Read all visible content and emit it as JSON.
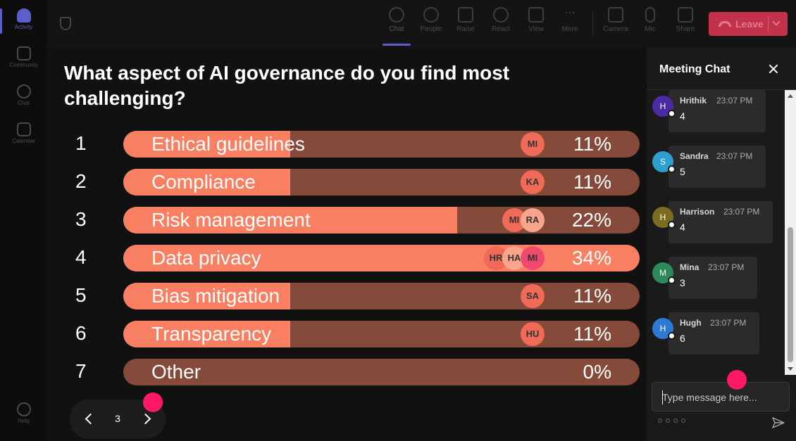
{
  "rail": {
    "items": [
      {
        "label": "Activity",
        "active": true
      },
      {
        "label": "Community"
      },
      {
        "label": "Chat"
      },
      {
        "label": "Calendar"
      },
      {
        "label": "Help"
      }
    ]
  },
  "toolbar": {
    "items": [
      {
        "label": "Chat",
        "icon": "chat-icon",
        "active": true
      },
      {
        "label": "People",
        "icon": "people-icon"
      },
      {
        "label": "Raise",
        "icon": "hand-icon"
      },
      {
        "label": "React",
        "icon": "smile-icon"
      },
      {
        "label": "View",
        "icon": "grid-icon"
      },
      {
        "label": "More",
        "icon": "more-icon"
      },
      {
        "label": "Camera",
        "icon": "camera-icon"
      },
      {
        "label": "Mic",
        "icon": "mic-icon"
      },
      {
        "label": "Share",
        "icon": "share-icon"
      }
    ],
    "leave_label": "Leave",
    "leave_color": "#c4314b"
  },
  "poll": {
    "question": "What aspect of AI governance do you find most challenging?",
    "bar_color": "#f87f62",
    "bar_track_color": "#864a3a",
    "options": [
      {
        "num": "1",
        "label": "Ethical guidelines",
        "pct_value": 11,
        "pct": "11%",
        "avatars": [
          {
            "initials": "MI",
            "color": "#ef6b57"
          }
        ]
      },
      {
        "num": "2",
        "label": "Compliance",
        "pct_value": 11,
        "pct": "11%",
        "avatars": [
          {
            "initials": "KA",
            "color": "#ef6b57"
          }
        ]
      },
      {
        "num": "3",
        "label": "Risk management",
        "pct_value": 22,
        "pct": "22%",
        "avatars": [
          {
            "initials": "MI",
            "color": "#ef6b57"
          },
          {
            "initials": "RA",
            "color": "#f9a58e"
          }
        ]
      },
      {
        "num": "4",
        "label": "Data privacy",
        "pct_value": 34,
        "pct": "34%",
        "avatars": [
          {
            "initials": "HR",
            "color": "#ef6b57"
          },
          {
            "initials": "HA",
            "color": "#f9a58e"
          },
          {
            "initials": "MI",
            "color": "#ef4a6e"
          }
        ]
      },
      {
        "num": "5",
        "label": "Bias mitigation",
        "pct_value": 11,
        "pct": "11%",
        "avatars": [
          {
            "initials": "SA",
            "color": "#ef6b57"
          }
        ]
      },
      {
        "num": "6",
        "label": "Transparency",
        "pct_value": 11,
        "pct": "11%",
        "avatars": [
          {
            "initials": "HU",
            "color": "#ef6b57"
          }
        ]
      },
      {
        "num": "7",
        "label": "Other",
        "pct_value": 0,
        "pct": "0%",
        "avatars": []
      }
    ]
  },
  "pager": {
    "page": "3"
  },
  "chat": {
    "title": "Meeting Chat",
    "messages": [
      {
        "initial": "H",
        "name": "Hrithik",
        "time": "23:07 PM",
        "text": "4",
        "color": "#4b2aa6"
      },
      {
        "initial": "S",
        "name": "Sandra",
        "time": "23:07 PM",
        "text": "5",
        "color": "#2f9fd0"
      },
      {
        "initial": "H",
        "name": "Harrison",
        "time": "23:07 PM",
        "text": "4",
        "color": "#7d6b1f"
      },
      {
        "initial": "M",
        "name": "Mina",
        "time": "23:07 PM",
        "text": "3",
        "color": "#2a8a5a"
      },
      {
        "initial": "H",
        "name": "Hugh",
        "time": "23:07 PM",
        "text": "6",
        "color": "#2b7bd6"
      }
    ],
    "compose_placeholder": "Type message here..."
  }
}
